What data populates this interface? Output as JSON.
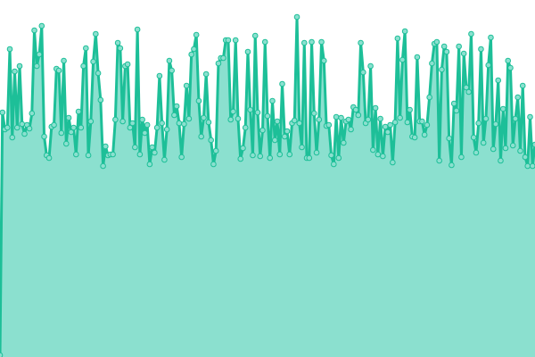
{
  "chart_data": {
    "type": "area",
    "title": "",
    "xlabel": "",
    "ylabel": "",
    "ylim": [
      0,
      400
    ],
    "grid": false,
    "colors": {
      "line": "#1dbf98",
      "fill": "#8be0cf",
      "marker_fill": "#8be0cf",
      "marker_stroke": "#1dbf98"
    },
    "values": [
      2,
      274,
      255,
      257,
      345,
      246,
      320,
      257,
      326,
      261,
      250,
      260,
      256,
      273,
      366,
      326,
      339,
      371,
      247,
      226,
      223,
      258,
      260,
      323,
      321,
      251,
      332,
      239,
      268,
      252,
      257,
      227,
      275,
      257,
      326,
      346,
      226,
      264,
      331,
      362,
      318,
      288,
      214,
      236,
      226,
      227,
      227,
      266,
      352,
      346,
      264,
      326,
      328,
      257,
      262,
      235,
      367,
      227,
      266,
      251,
      260,
      216,
      235,
      229,
      257,
      315,
      262,
      221,
      255,
      332,
      321,
      271,
      281,
      262,
      224,
      261,
      304,
      267,
      339,
      345,
      361,
      287,
      247,
      268,
      317,
      263,
      243,
      216,
      231,
      329,
      335,
      335,
      355,
      355,
      266,
      275,
      355,
      267,
      222,
      234,
      257,
      342,
      277,
      226,
      360,
      274,
      225,
      254,
      353,
      270,
      223,
      287,
      243,
      264,
      227,
      306,
      247,
      253,
      227,
      262,
      265,
      381,
      262,
      235,
      352,
      223,
      223,
      353,
      273,
      229,
      266,
      353,
      332,
      259,
      260,
      226,
      216,
      269,
      223,
      268,
      240,
      264,
      266,
      255,
      280,
      277,
      271,
      352,
      319,
      262,
      266,
      326,
      232,
      279,
      227,
      267,
      225,
      258,
      252,
      260,
      218,
      263,
      357,
      268,
      333,
      365,
      263,
      277,
      247,
      246,
      336,
      264,
      264,
      249,
      260,
      291,
      329,
      351,
      353,
      220,
      322,
      348,
      342,
      245,
      215,
      284,
      276,
      348,
      224,
      340,
      302,
      297,
      362,
      246,
      229,
      262,
      345,
      240,
      267,
      327,
      358,
      233,
      261,
      310,
      220,
      278,
      234,
      332,
      324,
      237,
      267,
      291,
      231,
      304,
      224,
      214,
      269,
      214,
      238
    ]
  }
}
